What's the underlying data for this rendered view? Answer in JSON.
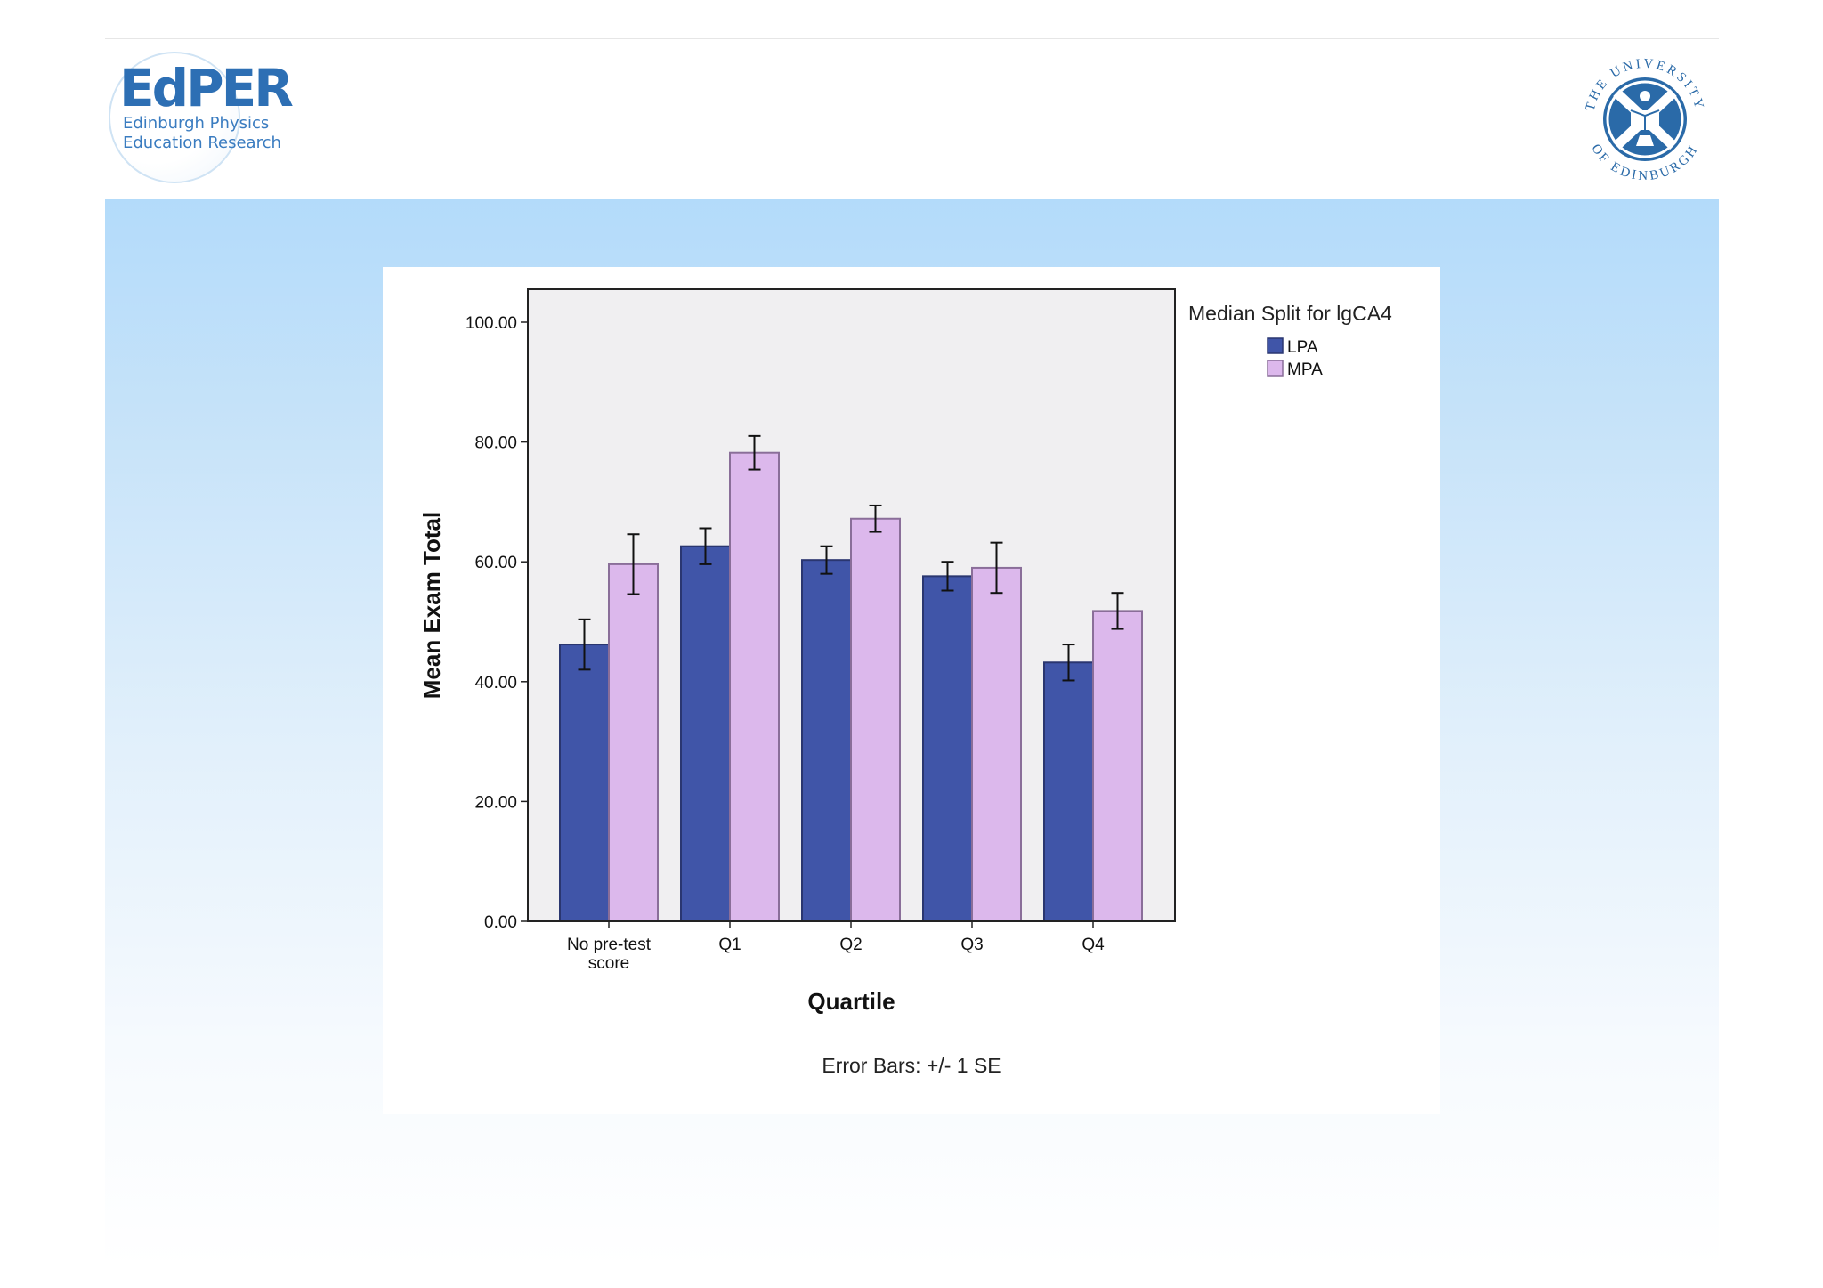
{
  "header": {
    "edper_logo": {
      "title": "EdPER",
      "subtitle_line1": "Edinburgh Physics",
      "subtitle_line2": "Education Research"
    },
    "university_seal": {
      "ring_text_top": "THE UNIVERSITY",
      "ring_text_bottom": "OF EDINBURGH"
    }
  },
  "colors": {
    "lpa": "#4055a8",
    "mpa": "#dcb8ec",
    "plot_background": "#f0eff1",
    "banner_top": "#b3dbfa",
    "brand_blue": "#2d6fb4"
  },
  "chart_data": {
    "type": "bar",
    "title": "",
    "xlabel": "Quartile",
    "ylabel": "Mean Exam Total",
    "ylim": [
      0,
      100
    ],
    "yticks": [
      "0.00",
      "20.00",
      "40.00",
      "60.00",
      "80.00",
      "100.00"
    ],
    "categories": [
      [
        "No pre-test",
        "score"
      ],
      [
        "Q1"
      ],
      [
        "Q2"
      ],
      [
        "Q3"
      ],
      [
        "Q4"
      ]
    ],
    "legend_title": "Median Split for lgCA4",
    "legend_position": "top-right",
    "grid": false,
    "series": [
      {
        "name": "LPA",
        "values": [
          46.2,
          62.6,
          60.3,
          57.6,
          43.2
        ],
        "error": [
          4.2,
          3.0,
          2.3,
          2.4,
          3.0
        ]
      },
      {
        "name": "MPA",
        "values": [
          59.6,
          78.2,
          67.2,
          59.0,
          51.8
        ],
        "error": [
          5.0,
          2.8,
          2.2,
          4.2,
          3.0
        ]
      }
    ],
    "note": "Error Bars: +/- 1 SE"
  }
}
